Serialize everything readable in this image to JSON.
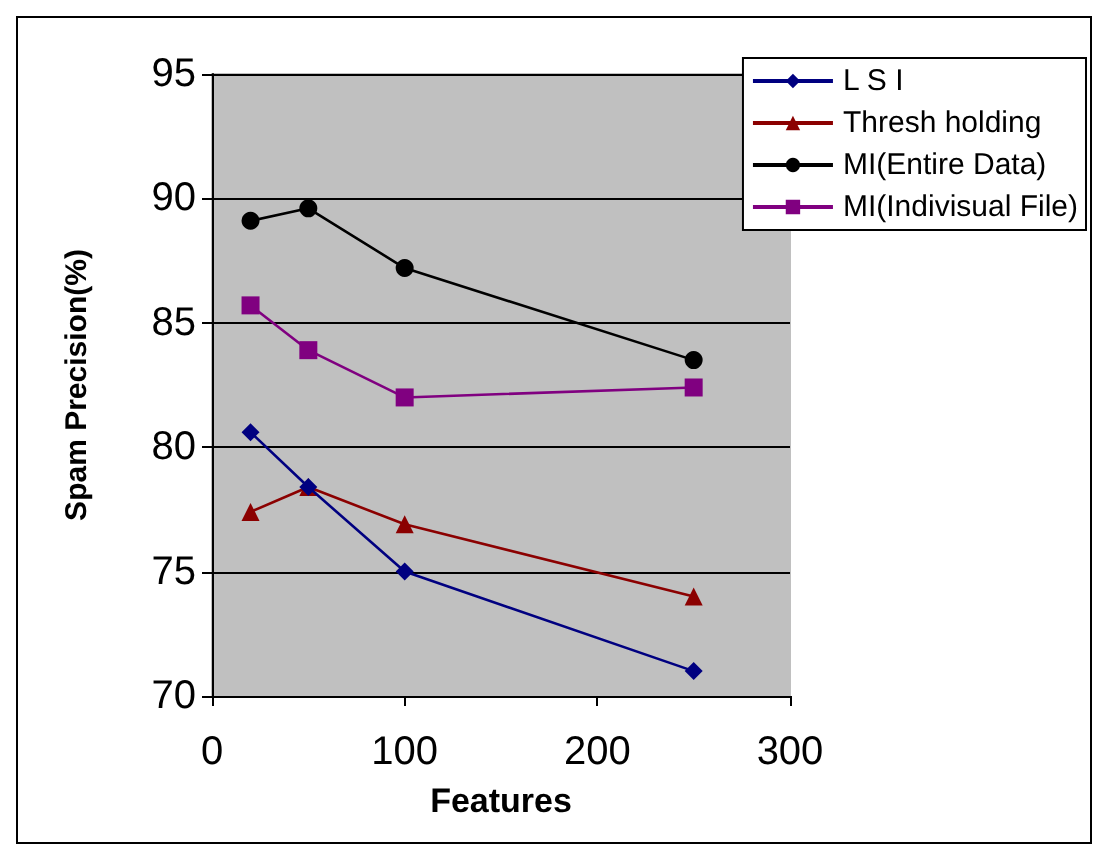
{
  "chart_data": {
    "type": "line",
    "xlabel": "Features",
    "ylabel": "Spam Precision(%)",
    "xlim": [
      0,
      300
    ],
    "xticks": [
      0,
      100,
      200,
      300
    ],
    "ylim": [
      70,
      95
    ],
    "yticks": [
      70,
      75,
      80,
      85,
      90,
      95
    ],
    "grid": "y",
    "legend": "top right",
    "x": [
      20,
      50,
      100,
      250
    ],
    "series": [
      {
        "name": "L S I",
        "color": "#000080",
        "marker": "diamond",
        "values": [
          80.6,
          78.4,
          75,
          71
        ]
      },
      {
        "name": "Thresh holding",
        "color": "#8b0000",
        "marker": "triangle",
        "values": [
          77.4,
          78.4,
          76.9,
          74
        ]
      },
      {
        "name": "MI(Entire Data)",
        "color": "#000000",
        "marker": "circle",
        "values": [
          89.1,
          89.6,
          87.2,
          83.5
        ]
      },
      {
        "name": "MI(Indivisual File)",
        "color": "#800080",
        "marker": "square",
        "values": [
          85.7,
          83.9,
          82,
          82.4
        ]
      }
    ]
  }
}
